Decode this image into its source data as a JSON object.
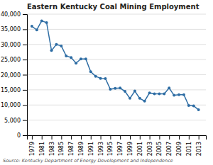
{
  "chart_data": {
    "type": "line",
    "title": "Eastern Kentucky Coal Mining Employment",
    "x": [
      1979,
      1980,
      1981,
      1982,
      1983,
      1984,
      1985,
      1986,
      1987,
      1988,
      1989,
      1990,
      1991,
      1992,
      1993,
      1994,
      1995,
      1996,
      1997,
      1998,
      1999,
      2000,
      2001,
      2002,
      2003,
      2004,
      2005,
      2006,
      2007,
      2008,
      2009,
      2010,
      2011,
      2012,
      2013
    ],
    "values": [
      36000,
      34800,
      37800,
      37200,
      28000,
      30000,
      29500,
      26200,
      25700,
      23800,
      25200,
      25200,
      21000,
      19500,
      18800,
      18700,
      15200,
      15500,
      15600,
      14500,
      12200,
      14600,
      12200,
      11300,
      14000,
      13700,
      13700,
      13700,
      15600,
      13200,
      13400,
      13400,
      9800,
      9700,
      8400
    ],
    "color": "#2e6da4",
    "marker": "circle",
    "xlim": [
      1978,
      2014.5
    ],
    "xticks": [
      1979,
      1981,
      1983,
      1985,
      1987,
      1989,
      1991,
      1993,
      1995,
      1997,
      1999,
      2001,
      2003,
      2005,
      2007,
      2009,
      2011,
      2013
    ],
    "ylim": [
      0,
      40000
    ],
    "yticks": [
      0,
      {
        "value": 5000,
        "label": "5,000"
      },
      {
        "value": 10000,
        "label": "10,000"
      },
      {
        "value": 15000,
        "label": "15,000"
      },
      {
        "value": 20000,
        "label": "20,000"
      },
      {
        "value": 25000,
        "label": "25,000"
      },
      {
        "value": 30000,
        "label": "30,000"
      },
      {
        "value": 35000,
        "label": "35,000"
      },
      {
        "value": 40000,
        "label": "40,000"
      }
    ],
    "grid": true,
    "annotations": [
      "Source: Kentucky Department of Energy Development and Independence"
    ]
  }
}
